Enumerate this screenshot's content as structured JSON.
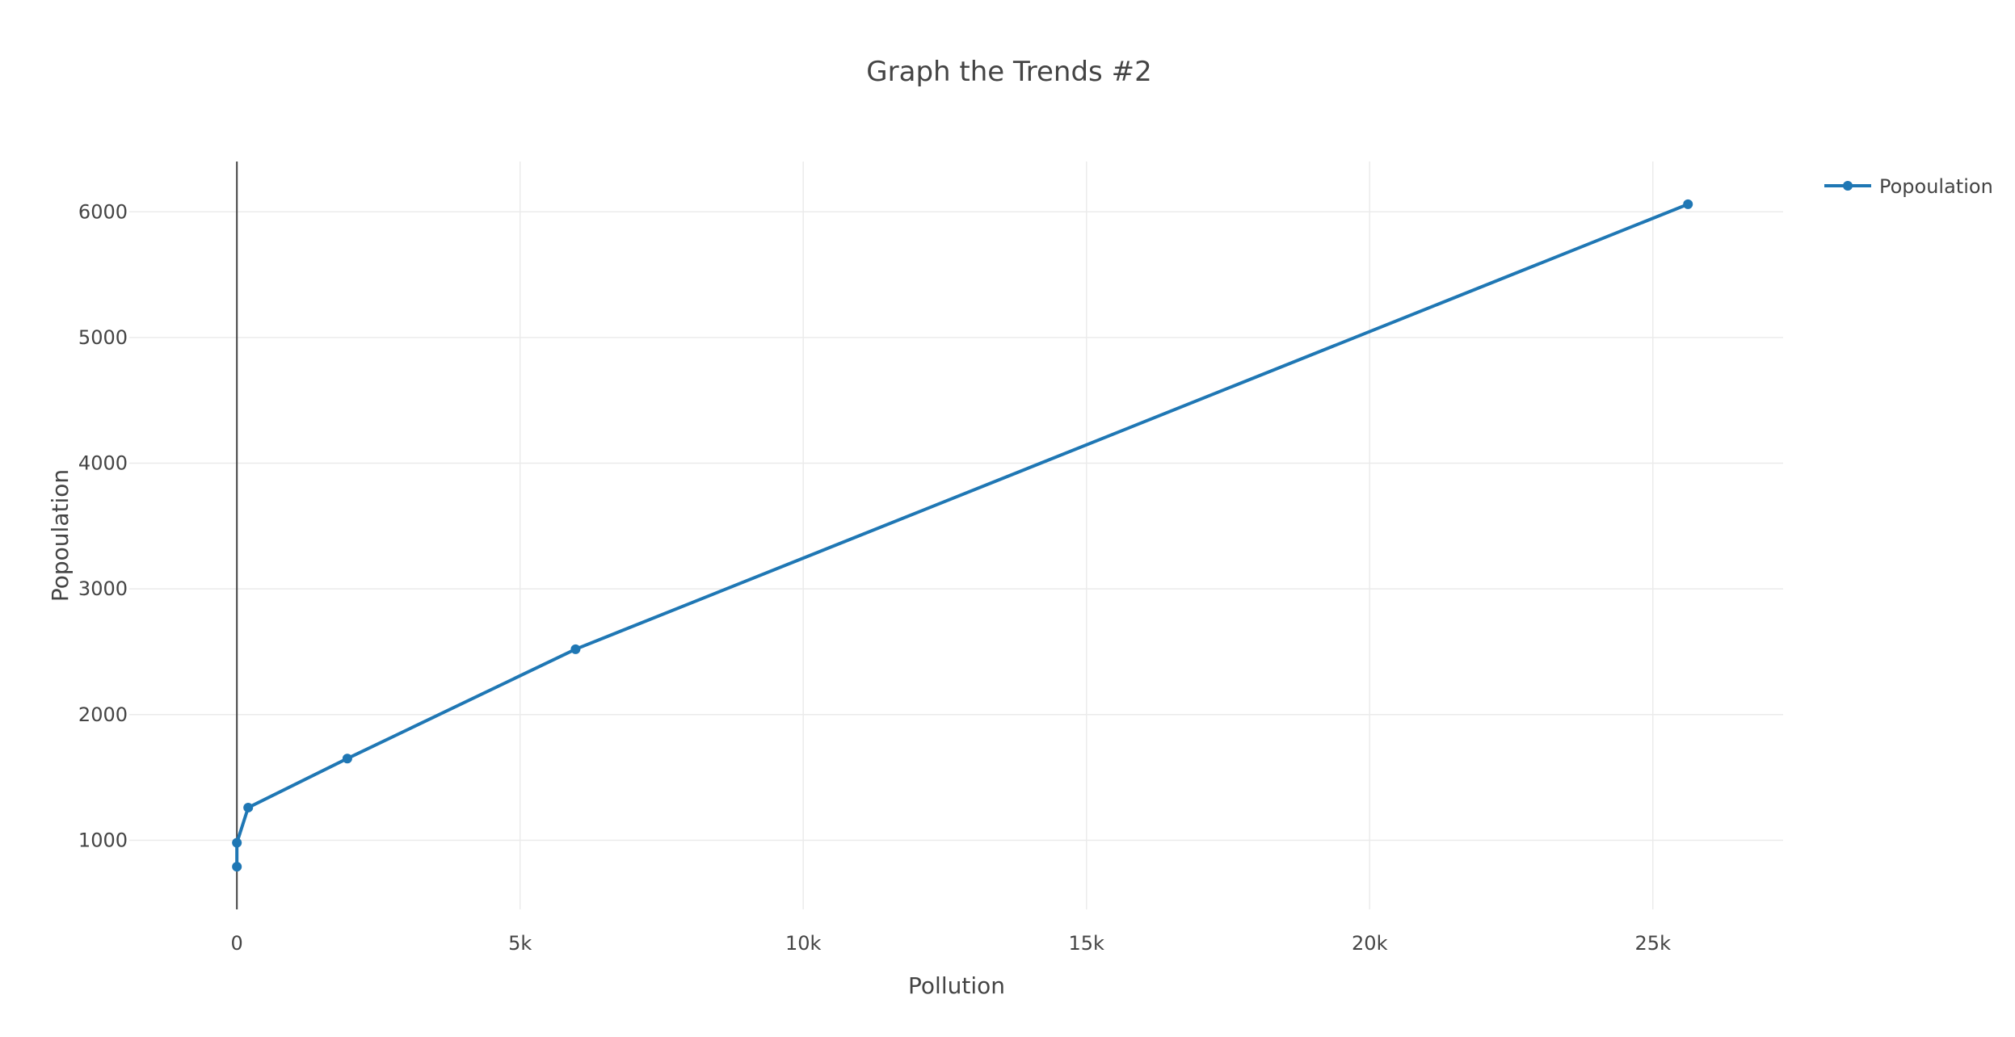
{
  "chart_data": {
    "type": "line",
    "title": "Graph the Trends #2",
    "xlabel": "Pollution",
    "ylabel": "Popoulation",
    "xlim": [
      -1900,
      27300
    ],
    "ylim": [
      450,
      6400
    ],
    "x_ticks": [
      0,
      5000,
      10000,
      15000,
      20000,
      25000
    ],
    "x_tick_labels": [
      "0",
      "5k",
      "10k",
      "15k",
      "20k",
      "25k"
    ],
    "y_ticks": [
      1000,
      2000,
      3000,
      4000,
      5000,
      6000
    ],
    "y_tick_labels": [
      "1000",
      "2000",
      "3000",
      "4000",
      "5000",
      "6000"
    ],
    "grid": true,
    "legend_position": "top-right",
    "series": [
      {
        "name": "Popoulation",
        "color": "#1f77b4",
        "mode": "lines+markers",
        "x": [
          0,
          0,
          200,
          1950,
          5980,
          25620
        ],
        "y": [
          790,
          980,
          1260,
          1650,
          2520,
          6060
        ]
      }
    ]
  }
}
